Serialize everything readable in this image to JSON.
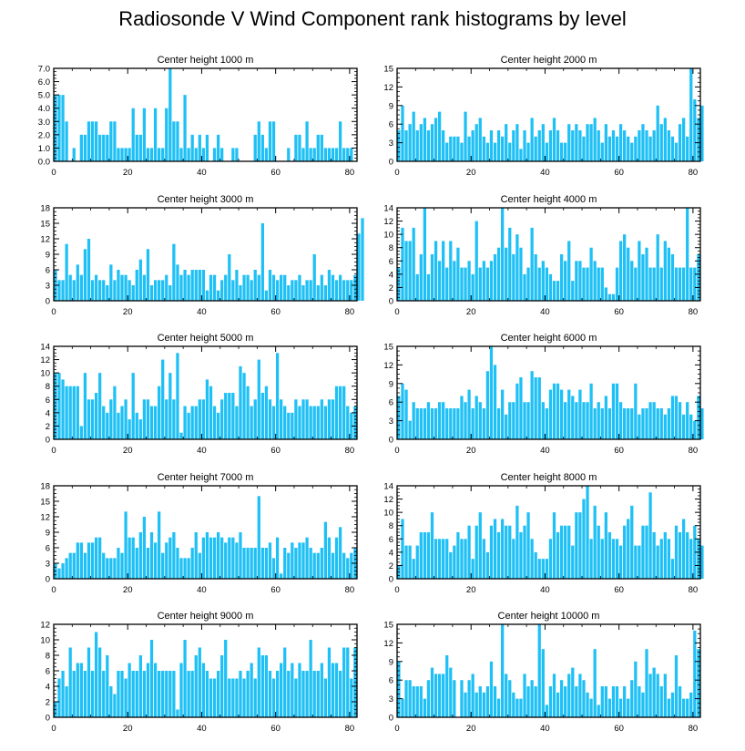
{
  "figure_title": "Radiosonde V Wind Component rank histograms by level",
  "bar_color": "#1ec0f5",
  "chart_data": [
    {
      "type": "bar",
      "title": "Center height 1000 m",
      "xlim": [
        0,
        82
      ],
      "ylim": [
        0,
        7
      ],
      "yticks": [
        "0.0",
        "1.0",
        "2.0",
        "3.0",
        "4.0",
        "5.0",
        "6.0",
        "7.0"
      ],
      "xticks": [
        "0",
        "20",
        "40",
        "60",
        "80"
      ],
      "values": [
        5,
        5,
        5,
        3,
        0,
        1,
        0,
        2,
        2,
        3,
        3,
        3,
        2,
        2,
        2,
        3,
        3,
        1,
        1,
        1,
        1,
        4,
        2,
        2,
        4,
        1,
        1,
        4,
        1,
        1,
        4,
        7,
        3,
        3,
        1,
        5,
        1,
        2,
        1,
        2,
        1,
        2,
        0,
        1,
        2,
        1,
        0,
        0,
        1,
        1,
        0,
        0,
        0,
        0,
        2,
        3,
        2,
        1,
        3,
        3,
        0,
        0,
        0,
        1,
        0,
        2,
        2,
        1,
        3,
        1,
        1,
        2,
        2,
        1,
        1,
        1,
        1,
        3,
        1,
        1,
        1
      ]
    },
    {
      "type": "bar",
      "title": "Center height 2000 m",
      "xlim": [
        0,
        82
      ],
      "ylim": [
        0,
        15
      ],
      "yticks": [
        "0",
        "3",
        "6",
        "9",
        "12",
        "15"
      ],
      "xticks": [
        "0",
        "20",
        "40",
        "60",
        "80"
      ],
      "values": [
        5,
        9,
        5,
        6,
        8,
        5,
        6,
        7,
        5,
        6,
        7,
        8,
        5,
        3,
        4,
        4,
        4,
        3,
        8,
        4,
        5,
        6,
        7,
        4,
        3,
        5,
        3,
        5,
        4,
        6,
        3,
        5,
        6,
        2,
        5,
        3,
        7,
        4,
        5,
        6,
        3,
        5,
        7,
        5,
        3,
        3,
        6,
        5,
        6,
        5,
        4,
        6,
        6,
        7,
        5,
        3,
        6,
        4,
        5,
        4,
        6,
        5,
        4,
        3,
        4,
        5,
        6,
        5,
        4,
        5,
        9,
        6,
        7,
        5,
        4,
        3,
        6,
        7,
        4,
        15,
        10,
        7,
        9
      ]
    },
    {
      "type": "bar",
      "title": "Center height 3000 m",
      "xlim": [
        0,
        82
      ],
      "ylim": [
        0,
        18
      ],
      "yticks": [
        "0",
        "3",
        "6",
        "9",
        "12",
        "15",
        "18"
      ],
      "xticks": [
        "0",
        "20",
        "40",
        "60",
        "80"
      ],
      "values": [
        6,
        4,
        4,
        11,
        5,
        4,
        7,
        5,
        10,
        12,
        4,
        5,
        4,
        4,
        3,
        7,
        4,
        6,
        5,
        5,
        4,
        3,
        6,
        8,
        5,
        10,
        3,
        4,
        4,
        4,
        5,
        3,
        11,
        7,
        5,
        6,
        5,
        6,
        6,
        6,
        6,
        2,
        5,
        5,
        2,
        4,
        5,
        9,
        4,
        6,
        3,
        5,
        5,
        4,
        6,
        5,
        15,
        2,
        6,
        5,
        4,
        5,
        5,
        3,
        4,
        4,
        5,
        3,
        4,
        4,
        9,
        3,
        5,
        3,
        6,
        5,
        4,
        5,
        4,
        4,
        4,
        5,
        13,
        16
      ]
    },
    {
      "type": "bar",
      "title": "Center height 4000 m",
      "xlim": [
        0,
        82
      ],
      "ylim": [
        0,
        14
      ],
      "yticks": [
        "0",
        "2",
        "4",
        "6",
        "8",
        "10",
        "12",
        "14"
      ],
      "xticks": [
        "0",
        "20",
        "40",
        "60",
        "80"
      ],
      "values": [
        5,
        11,
        9,
        9,
        11,
        4,
        7,
        14,
        4,
        7,
        9,
        6,
        9,
        5,
        9,
        6,
        8,
        5,
        5,
        6,
        4,
        12,
        5,
        6,
        5,
        6,
        7,
        8,
        14,
        8,
        11,
        7,
        10,
        8,
        4,
        5,
        11,
        7,
        5,
        6,
        5,
        4,
        3,
        3,
        7,
        6,
        9,
        3,
        6,
        6,
        5,
        5,
        8,
        6,
        5,
        5,
        2,
        1,
        1,
        5,
        9,
        10,
        8,
        6,
        5,
        9,
        7,
        8,
        5,
        5,
        10,
        5,
        9,
        8,
        7,
        5,
        5,
        5,
        14,
        5,
        5,
        7
      ]
    },
    {
      "type": "bar",
      "title": "Center height 5000 m",
      "xlim": [
        0,
        82
      ],
      "ylim": [
        0,
        14
      ],
      "yticks": [
        "0",
        "2",
        "4",
        "6",
        "8",
        "10",
        "12",
        "14"
      ],
      "xticks": [
        "0",
        "20",
        "40",
        "60",
        "80"
      ],
      "values": [
        10,
        10,
        9,
        8,
        8,
        8,
        8,
        2,
        10,
        6,
        6,
        7,
        10,
        5,
        4,
        6,
        8,
        4,
        5,
        6,
        3,
        10,
        4,
        3,
        6,
        6,
        5,
        5,
        8,
        12,
        6,
        10,
        6,
        13,
        1,
        5,
        4,
        5,
        5,
        6,
        6,
        9,
        8,
        5,
        4,
        6,
        7,
        7,
        7,
        5,
        11,
        10,
        8,
        5,
        6,
        12,
        7,
        8,
        6,
        5,
        13,
        6,
        5,
        4,
        4,
        6,
        5,
        6,
        6,
        5,
        5,
        5,
        6,
        5,
        6,
        6,
        8,
        8,
        8,
        5,
        4,
        5
      ]
    },
    {
      "type": "bar",
      "title": "Center height 6000 m",
      "xlim": [
        0,
        82
      ],
      "ylim": [
        0,
        15
      ],
      "yticks": [
        "0",
        "3",
        "6",
        "9",
        "12",
        "15"
      ],
      "xticks": [
        "0",
        "20",
        "40",
        "60",
        "80"
      ],
      "values": [
        7,
        9,
        8,
        3,
        6,
        5,
        5,
        5,
        6,
        5,
        5,
        6,
        6,
        5,
        5,
        5,
        5,
        7,
        6,
        8,
        5,
        7,
        6,
        5,
        11,
        15,
        12,
        5,
        8,
        4,
        6,
        6,
        9,
        10,
        6,
        6,
        11,
        10,
        10,
        6,
        5,
        8,
        9,
        9,
        8,
        6,
        8,
        7,
        6,
        8,
        6,
        6,
        9,
        5,
        6,
        5,
        7,
        5,
        9,
        9,
        6,
        5,
        5,
        5,
        9,
        4,
        5,
        5,
        6,
        6,
        5,
        5,
        4,
        5,
        7,
        7,
        6,
        4,
        6,
        4,
        3,
        7,
        5
      ]
    },
    {
      "type": "bar",
      "title": "Center height 7000 m",
      "xlim": [
        0,
        82
      ],
      "ylim": [
        0,
        18
      ],
      "yticks": [
        "0",
        "3",
        "6",
        "9",
        "12",
        "15",
        "18"
      ],
      "xticks": [
        "0",
        "20",
        "40",
        "60",
        "80"
      ],
      "values": [
        3,
        2,
        3,
        4,
        5,
        5,
        7,
        7,
        5,
        7,
        7,
        8,
        8,
        5,
        4,
        4,
        4,
        6,
        5,
        13,
        8,
        8,
        6,
        9,
        12,
        6,
        9,
        7,
        13,
        5,
        7,
        8,
        9,
        6,
        4,
        4,
        4,
        6,
        9,
        5,
        8,
        9,
        8,
        8,
        9,
        8,
        7,
        8,
        8,
        7,
        9,
        6,
        6,
        6,
        6,
        16,
        6,
        6,
        7,
        4,
        8,
        1,
        6,
        5,
        7,
        6,
        7,
        7,
        8,
        6,
        5,
        5,
        6,
        11,
        8,
        5,
        8,
        10,
        5,
        4,
        5,
        6
      ]
    },
    {
      "type": "bar",
      "title": "Center height 8000 m",
      "xlim": [
        0,
        82
      ],
      "ylim": [
        0,
        14
      ],
      "yticks": [
        "0",
        "2",
        "4",
        "6",
        "8",
        "10",
        "12",
        "14"
      ],
      "xticks": [
        "0",
        "20",
        "40",
        "60",
        "80"
      ],
      "values": [
        2,
        9,
        5,
        5,
        3,
        5,
        7,
        7,
        7,
        10,
        6,
        6,
        6,
        6,
        4,
        5,
        7,
        6,
        6,
        8,
        3,
        8,
        10,
        6,
        4,
        8,
        9,
        7,
        9,
        8,
        8,
        6,
        11,
        7,
        8,
        10,
        6,
        4,
        3,
        3,
        3,
        6,
        10,
        7,
        8,
        8,
        8,
        5,
        10,
        10,
        12,
        14,
        6,
        11,
        8,
        6,
        10,
        7,
        6,
        6,
        5,
        8,
        9,
        11,
        5,
        5,
        8,
        8,
        13,
        7,
        5,
        6,
        7,
        6,
        3,
        8,
        7,
        9,
        7,
        6,
        8,
        6,
        5
      ]
    },
    {
      "type": "bar",
      "title": "Center height 9000 m",
      "xlim": [
        0,
        82
      ],
      "ylim": [
        0,
        12
      ],
      "yticks": [
        "0",
        "2",
        "4",
        "6",
        "8",
        "10",
        "12"
      ],
      "xticks": [
        "0",
        "20",
        "40",
        "60",
        "80"
      ],
      "values": [
        2,
        5,
        6,
        4,
        9,
        6,
        7,
        7,
        6,
        9,
        6,
        11,
        9,
        6,
        8,
        4,
        3,
        6,
        6,
        5,
        7,
        6,
        6,
        8,
        6,
        7,
        10,
        7,
        6,
        6,
        6,
        6,
        6,
        1,
        7,
        10,
        6,
        6,
        8,
        9,
        7,
        6,
        5,
        5,
        6,
        8,
        10,
        5,
        5,
        5,
        6,
        5,
        6,
        7,
        5,
        9,
        8,
        8,
        6,
        5,
        6,
        7,
        9,
        6,
        7,
        5,
        7,
        6,
        6,
        10,
        6,
        6,
        7,
        5,
        9,
        7,
        7,
        6,
        9,
        9,
        5,
        9
      ]
    },
    {
      "type": "bar",
      "title": "Center height 10000 m",
      "xlim": [
        0,
        82
      ],
      "ylim": [
        0,
        15
      ],
      "yticks": [
        "0",
        "3",
        "6",
        "9",
        "12",
        "15"
      ],
      "xticks": [
        "0",
        "20",
        "40",
        "60",
        "80"
      ],
      "values": [
        9,
        3,
        6,
        6,
        5,
        5,
        5,
        3,
        6,
        8,
        7,
        7,
        7,
        10,
        8,
        6,
        0,
        6,
        4,
        6,
        7,
        4,
        5,
        4,
        5,
        9,
        5,
        3,
        15,
        7,
        6,
        4,
        3,
        3,
        7,
        5,
        6,
        5,
        15,
        11,
        2,
        5,
        7,
        4,
        6,
        5,
        7,
        8,
        5,
        7,
        6,
        4,
        3,
        11,
        2,
        5,
        5,
        3,
        5,
        5,
        3,
        5,
        3,
        6,
        9,
        5,
        4,
        11,
        7,
        8,
        7,
        5,
        7,
        3,
        4,
        10,
        5,
        3,
        3,
        4,
        14,
        11
      ]
    }
  ]
}
